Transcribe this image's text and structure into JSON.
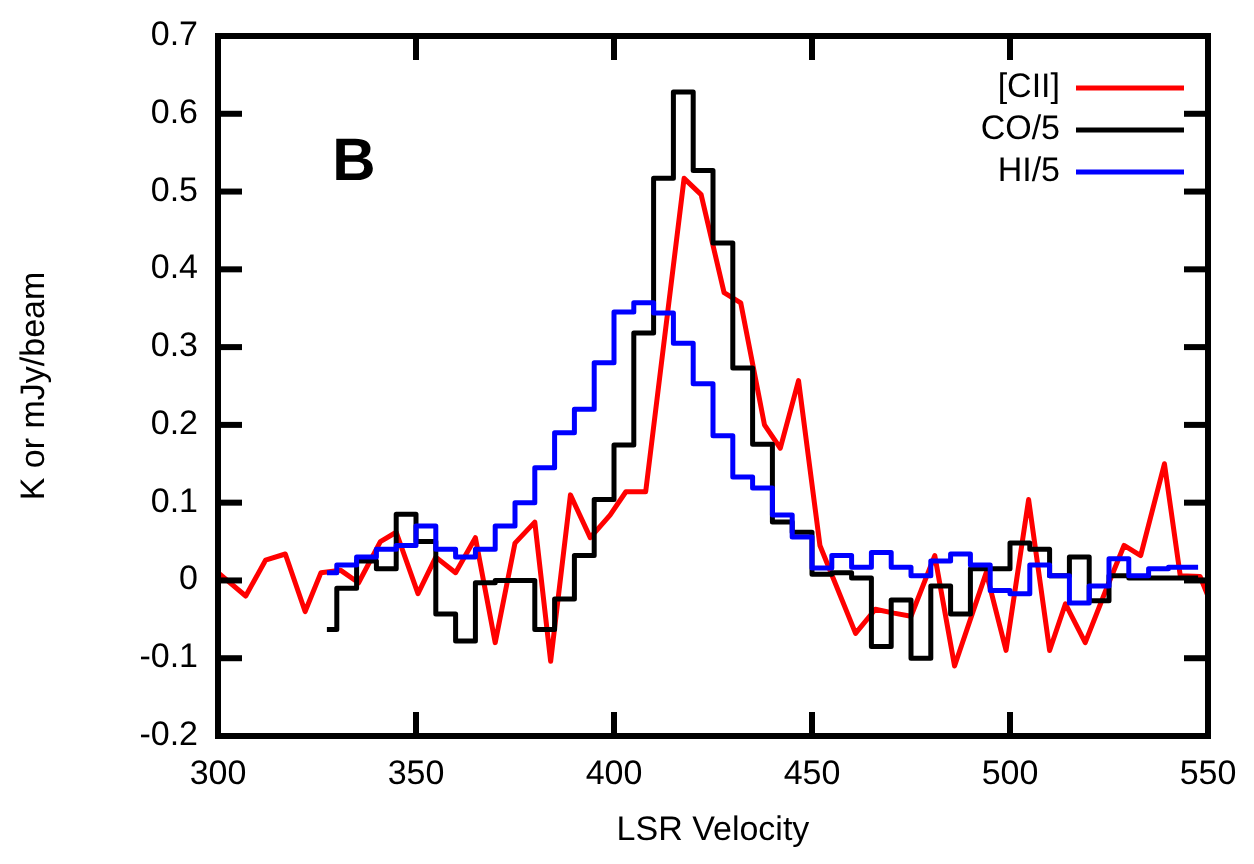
{
  "chart_data": {
    "type": "line",
    "title": "B",
    "xlabel": "LSR Velocity",
    "ylabel": "K or mJy/beam",
    "xlim": [
      300,
      550
    ],
    "ylim": [
      -0.2,
      0.7
    ],
    "xticks": [
      300,
      350,
      400,
      450,
      500,
      550
    ],
    "yticks": [
      -0.2,
      -0.1,
      0,
      0.1,
      0.2,
      0.3,
      0.4,
      0.5,
      0.6,
      0.7
    ],
    "legend": "top right",
    "series": [
      {
        "name": "[CII]",
        "color": "#ff0000",
        "x": [
          300,
          307,
          312,
          317,
          322,
          326,
          331,
          335.5,
          341,
          345,
          350.5,
          355,
          360,
          365,
          370,
          375,
          380,
          384,
          389,
          394,
          399,
          403,
          408,
          417.7,
          422,
          427.8,
          432,
          438,
          442,
          446.6,
          452,
          461,
          466,
          470.7,
          475,
          481,
          486,
          494,
          499,
          504.7,
          510,
          514,
          519,
          524.4,
          528.8,
          533,
          539,
          543,
          548,
          550
        ],
        "values": [
          0.01,
          -0.02,
          0.026,
          0.034,
          -0.04,
          0.01,
          0.013,
          -0.003,
          0.05,
          0.062,
          -0.017,
          0.03,
          0.01,
          0.055,
          -0.08,
          0.048,
          0.075,
          -0.104,
          0.11,
          0.055,
          0.084,
          0.114,
          0.114,
          0.517,
          0.496,
          0.37,
          0.357,
          0.2,
          0.17,
          0.257,
          0.045,
          -0.068,
          -0.037,
          -0.042,
          -0.046,
          0.032,
          -0.11,
          0.01,
          -0.09,
          0.104,
          -0.09,
          -0.03,
          -0.08,
          -0.01,
          0.045,
          0.032,
          0.15,
          0.006,
          0.005,
          -0.02
        ]
      },
      {
        "name": "CO/5",
        "color": "#000000",
        "type": "step",
        "x": [
          327.5,
          332.5,
          337.5,
          342.5,
          347.5,
          352.5,
          357.5,
          362.5,
          367.5,
          372.5,
          377.5,
          382.5,
          387.5,
          392.5,
          397.5,
          402.5,
          407.5,
          412.5,
          417.5,
          422.5,
          427.5,
          432.5,
          437.5,
          442.5,
          447.5,
          452.5,
          457.5,
          462.5,
          467.5,
          472.5,
          477.5,
          482.5,
          487.5,
          492.5,
          497.5,
          502.5,
          507.5,
          512.5,
          517.5,
          522.5,
          527.5,
          532.5,
          537.5,
          542.5,
          547.5
        ],
        "values": [
          -0.063,
          -0.01,
          0.025,
          0.015,
          0.085,
          0.05,
          -0.043,
          -0.078,
          -0.003,
          0,
          0,
          -0.063,
          -0.024,
          0.032,
          0.104,
          0.174,
          0.318,
          0.517,
          0.628,
          0.527,
          0.434,
          0.273,
          0.175,
          0.075,
          0.062,
          0.008,
          0.01,
          0.003,
          -0.085,
          -0.025,
          -0.1,
          -0.007,
          -0.043,
          0.015,
          0.015,
          0.048,
          0.04,
          0.006,
          0.03,
          -0.026,
          0.006,
          0.003,
          0.003,
          0.003,
          0.003
        ]
      },
      {
        "name": "HI/5",
        "color": "#0000ff",
        "type": "step",
        "x": [
          327.5,
          332.5,
          337.5,
          342.5,
          347.5,
          352.5,
          357.5,
          362.5,
          367.5,
          372.5,
          377.5,
          382.5,
          387.5,
          392.5,
          397.5,
          402.5,
          407.5,
          412.5,
          417.5,
          422.5,
          427.5,
          432.5,
          437.5,
          442.5,
          447.5,
          452.5,
          457.5,
          462.5,
          467.5,
          472.5,
          477.5,
          482.5,
          487.5,
          492.5,
          497.5,
          502.5,
          507.5,
          512.5,
          517.5,
          522.5,
          527.5,
          532.5,
          537.5,
          542.5,
          547.5
        ],
        "values": [
          0.01,
          0.02,
          0.03,
          0.04,
          0.045,
          0.07,
          0.04,
          0.03,
          0.04,
          0.07,
          0.1,
          0.145,
          0.19,
          0.22,
          0.28,
          0.345,
          0.357,
          0.344,
          0.305,
          0.253,
          0.186,
          0.133,
          0.119,
          0.084,
          0.056,
          0.016,
          0.032,
          0.017,
          0.036,
          0.017,
          0.006,
          0.025,
          0.034,
          0.02,
          -0.013,
          -0.017,
          0.02,
          0.006,
          -0.029,
          -0.007,
          0.028,
          0.006,
          0.015,
          0.017,
          0.017
        ]
      }
    ]
  }
}
